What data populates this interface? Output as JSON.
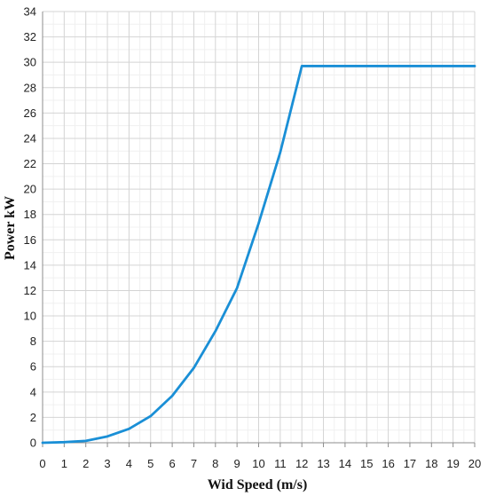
{
  "chart_data": {
    "type": "line",
    "title": "",
    "xlabel": "Wid Speed (m/s)",
    "ylabel": "Power kW",
    "xlim": [
      0,
      20
    ],
    "ylim": [
      0,
      34
    ],
    "x_ticks": [
      "0",
      "1",
      "2",
      "3",
      "4",
      "5",
      "6",
      "7",
      "8",
      "9",
      "10",
      "11",
      "12",
      "13",
      "14",
      "15",
      "16",
      "17",
      "18",
      "19",
      "20"
    ],
    "y_ticks": [
      "0",
      "2",
      "4",
      "6",
      "8",
      "10",
      "12",
      "14",
      "16",
      "18",
      "20",
      "22",
      "24",
      "26",
      "28",
      "30",
      "32",
      "34"
    ],
    "grid": true,
    "legend": "none",
    "series": [
      {
        "color": "#1a8fd6",
        "x": [
          0,
          1,
          2,
          3,
          4,
          5,
          6,
          7,
          8,
          9,
          10,
          11,
          12,
          13,
          14,
          15,
          16,
          17,
          18,
          19,
          20
        ],
        "y": [
          0,
          0.05,
          0.15,
          0.5,
          1.1,
          2.1,
          3.7,
          5.9,
          8.8,
          12.2,
          17.3,
          22.9,
          29.7,
          29.7,
          29.7,
          29.7,
          29.7,
          29.7,
          29.7,
          29.7,
          29.7
        ]
      }
    ]
  }
}
